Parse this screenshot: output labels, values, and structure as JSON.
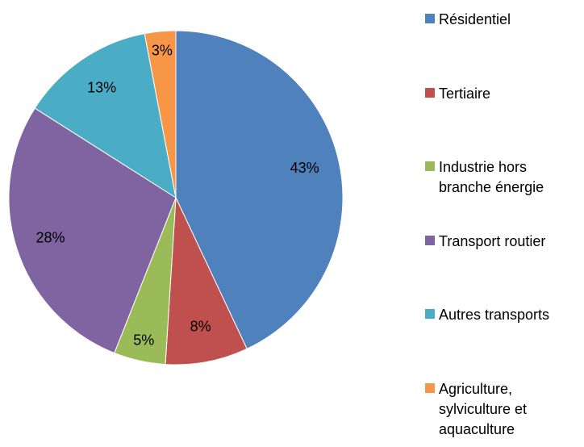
{
  "chart_data": {
    "type": "pie",
    "categories": [
      "Résidentiel",
      "Tertiaire",
      "Industrie hors branche énergie",
      "Transport routier",
      "Autres transports",
      "Agriculture, sylviculture et aquaculture"
    ],
    "values": [
      43,
      8,
      5,
      28,
      13,
      3
    ],
    "value_labels": [
      "43%",
      "8%",
      "5%",
      "28%",
      "13%",
      "3%"
    ],
    "colors": [
      "#4f81bd",
      "#c0504d",
      "#9bbb59",
      "#8064a2",
      "#4bacc6",
      "#f79646"
    ],
    "legend": "right"
  }
}
